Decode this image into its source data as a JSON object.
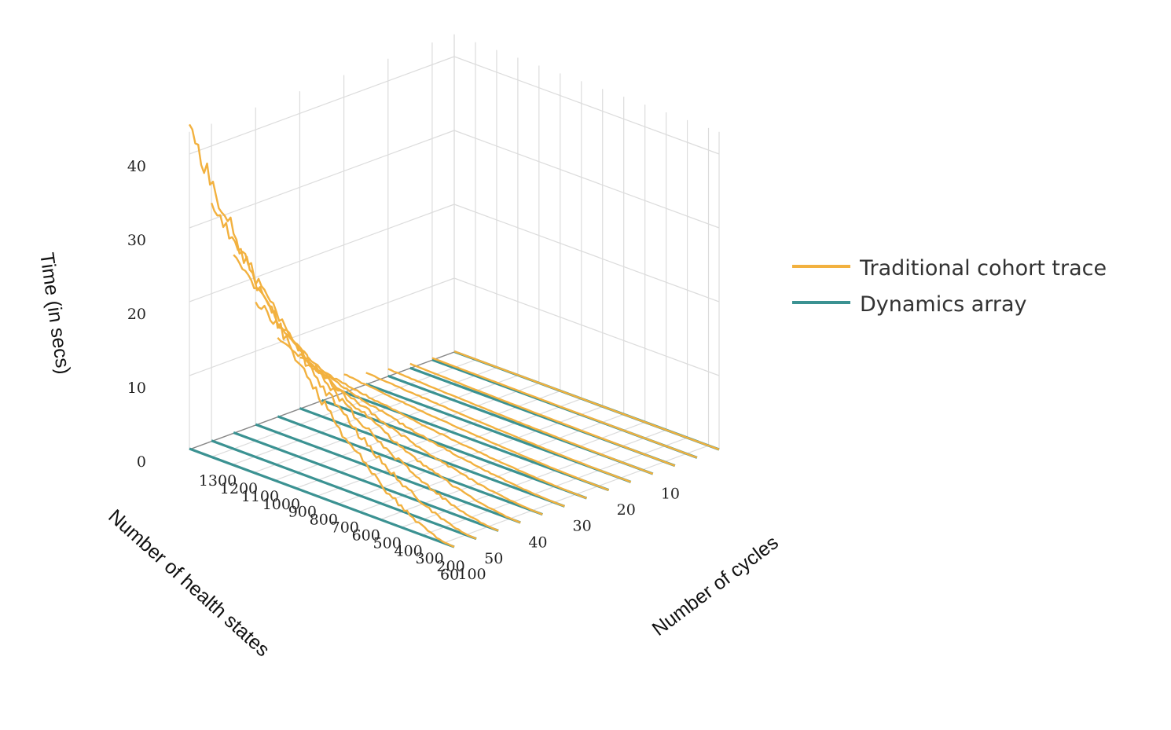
{
  "chart_data": {
    "type": "line",
    "subtype": "3d-line",
    "xlabel": "Number of health states",
    "ylabel": "Number of cycles",
    "zlabel": "Time (in secs)",
    "x_ticks": [
      "10",
      "20",
      "30",
      "40",
      "50",
      "60"
    ],
    "y_ticks": [
      "100",
      "200",
      "300",
      "400",
      "500",
      "600",
      "700",
      "800",
      "900",
      "1000",
      "1100",
      "1200",
      "1300"
    ],
    "z_ticks": [
      "0",
      "10",
      "20",
      "30",
      "40"
    ],
    "xlim": [
      5,
      65
    ],
    "ylim": [
      50,
      1300
    ],
    "zlim": [
      0,
      43
    ],
    "grid": true,
    "legend_position": "right",
    "series": [
      {
        "name": "Traditional cohort trace",
        "color": "#f2b13f"
      },
      {
        "name": "Dynamics array",
        "color": "#3b9292"
      }
    ],
    "health_states": [
      5,
      10,
      15,
      20,
      25,
      30,
      35,
      40,
      45,
      50,
      55,
      60,
      65
    ],
    "cycles": [
      50,
      1300
    ],
    "traditional_time_at_max_cycles": [
      0.1,
      0.3,
      0.6,
      1.0,
      1.6,
      2.5,
      4,
      7,
      11,
      17,
      24,
      33,
      43
    ],
    "dynamics_time_at_max_cycles": [
      0.05,
      0.05,
      0.05,
      0.06,
      0.06,
      0.07,
      0.07,
      0.08,
      0.08,
      0.09,
      0.09,
      0.1,
      0.1
    ]
  }
}
